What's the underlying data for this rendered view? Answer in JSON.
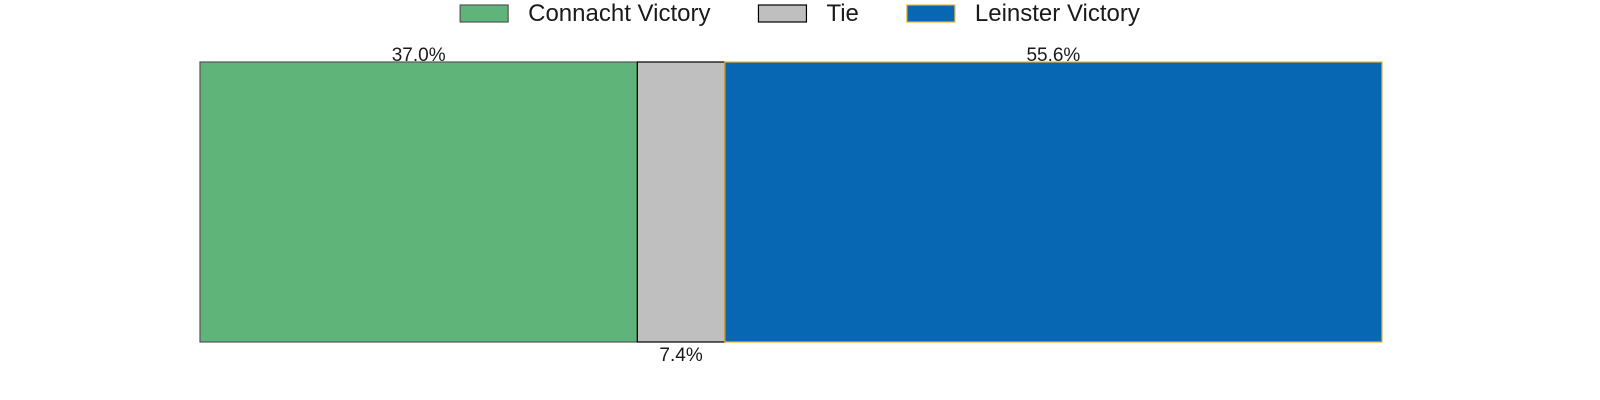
{
  "chart_data": {
    "type": "bar",
    "orientation": "horizontal",
    "stacked": true,
    "normalized": true,
    "categories": [
      ""
    ],
    "series": [
      {
        "name": "Connacht Victory",
        "values": [
          37.0
        ],
        "label": "37.0%",
        "color": "#5fb479",
        "edge": "#555555",
        "label_position": "top"
      },
      {
        "name": "Tie",
        "values": [
          7.4
        ],
        "label": "7.4%",
        "color": "#bfbfbf",
        "edge": "#000000",
        "label_position": "bottom"
      },
      {
        "name": "Leinster Victory",
        "values": [
          55.6
        ],
        "label": "55.6%",
        "color": "#0767b3",
        "edge": "#e8b33a",
        "label_position": "top"
      }
    ],
    "xlim": [
      0,
      100
    ],
    "grid": false,
    "axes_visible": false,
    "legend_position": "top-center"
  }
}
